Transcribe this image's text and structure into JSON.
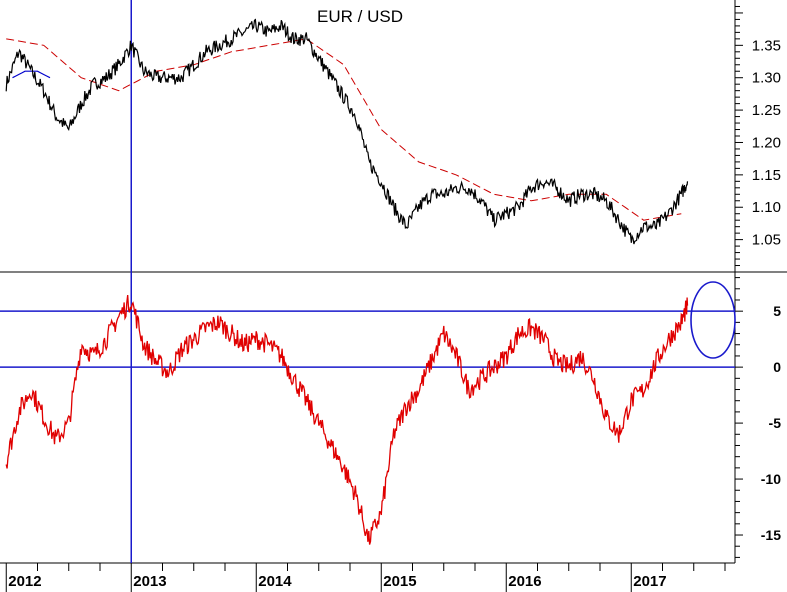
{
  "chart_data": [
    {
      "type": "line",
      "title": "EUR / USD",
      "xlabel": "",
      "ylabel": "",
      "ylim": [
        1.0,
        1.42
      ],
      "yticks": [
        "1.05",
        "1.10",
        "1.15",
        "1.20",
        "1.25",
        "1.30",
        "1.35"
      ],
      "series": [
        {
          "color": "#000000",
          "x": [
            2012.0,
            2012.1,
            2012.2,
            2012.3,
            2012.4,
            2012.5,
            2012.6,
            2012.7,
            2012.8,
            2012.9,
            2013.0,
            2013.1,
            2013.2,
            2013.3,
            2013.4,
            2013.5,
            2013.6,
            2013.7,
            2013.8,
            2013.9,
            2014.0,
            2014.1,
            2014.2,
            2014.3,
            2014.4,
            2014.5,
            2014.6,
            2014.7,
            2014.8,
            2014.9,
            2015.0,
            2015.1,
            2015.2,
            2015.3,
            2015.4,
            2015.5,
            2015.6,
            2015.7,
            2015.8,
            2015.9,
            2016.0,
            2016.1,
            2016.2,
            2016.3,
            2016.4,
            2016.5,
            2016.6,
            2016.7,
            2016.8,
            2016.9,
            2017.0,
            2017.1,
            2017.2,
            2017.3,
            2017.4,
            2017.45
          ],
          "values": [
            1.29,
            1.34,
            1.31,
            1.28,
            1.24,
            1.22,
            1.26,
            1.29,
            1.3,
            1.32,
            1.35,
            1.31,
            1.3,
            1.3,
            1.3,
            1.32,
            1.34,
            1.35,
            1.36,
            1.37,
            1.38,
            1.37,
            1.38,
            1.36,
            1.36,
            1.33,
            1.3,
            1.27,
            1.24,
            1.17,
            1.14,
            1.1,
            1.07,
            1.1,
            1.12,
            1.12,
            1.13,
            1.13,
            1.11,
            1.08,
            1.09,
            1.1,
            1.13,
            1.14,
            1.13,
            1.11,
            1.12,
            1.12,
            1.11,
            1.08,
            1.05,
            1.07,
            1.07,
            1.09,
            1.12,
            1.14
          ]
        },
        {
          "color": "#cc0000",
          "dashed": true,
          "x": [
            2012.0,
            2012.3,
            2012.6,
            2012.9,
            2013.2,
            2013.5,
            2013.8,
            2014.1,
            2014.4,
            2014.7,
            2015.0,
            2015.3,
            2015.6,
            2015.9,
            2016.2,
            2016.5,
            2016.8,
            2017.1,
            2017.4
          ],
          "values": [
            1.36,
            1.35,
            1.3,
            1.28,
            1.31,
            1.32,
            1.34,
            1.35,
            1.36,
            1.32,
            1.22,
            1.17,
            1.15,
            1.12,
            1.11,
            1.12,
            1.12,
            1.08,
            1.09
          ]
        },
        {
          "color": "#0000cc",
          "x": [
            2012.05,
            2012.15,
            2012.25,
            2012.35
          ],
          "values": [
            1.3,
            1.31,
            1.31,
            1.3
          ]
        }
      ]
    },
    {
      "type": "line",
      "title": "",
      "xlabel": "",
      "ylabel": "",
      "ylim": [
        -17.5,
        8.5
      ],
      "yticks": [
        "5",
        "0",
        "-5",
        "-10",
        "-15"
      ],
      "reference_lines": [
        5,
        0
      ],
      "series": [
        {
          "color": "#e00000",
          "x": [
            2012.0,
            2012.1,
            2012.2,
            2012.3,
            2012.4,
            2012.5,
            2012.6,
            2012.7,
            2012.8,
            2012.9,
            2013.0,
            2013.1,
            2013.2,
            2013.3,
            2013.4,
            2013.5,
            2013.6,
            2013.7,
            2013.8,
            2013.9,
            2014.0,
            2014.1,
            2014.2,
            2014.3,
            2014.4,
            2014.5,
            2014.6,
            2014.7,
            2014.8,
            2014.9,
            2015.0,
            2015.1,
            2015.2,
            2015.3,
            2015.4,
            2015.5,
            2015.6,
            2015.7,
            2015.8,
            2015.9,
            2016.0,
            2016.1,
            2016.2,
            2016.3,
            2016.4,
            2016.5,
            2016.6,
            2016.7,
            2016.8,
            2016.9,
            2017.0,
            2017.1,
            2017.2,
            2017.3,
            2017.4,
            2017.45
          ],
          "values": [
            -8.5,
            -4.0,
            -2.0,
            -4.5,
            -6.5,
            -5.0,
            2.0,
            1.0,
            2.5,
            4.5,
            6.0,
            2.0,
            0.5,
            -0.5,
            1.5,
            2.5,
            3.5,
            4.0,
            3.0,
            2.0,
            2.5,
            2.0,
            1.0,
            -1.0,
            -3.0,
            -5.0,
            -7.0,
            -9.0,
            -11.5,
            -15.5,
            -13.0,
            -6.0,
            -3.5,
            -2.0,
            0.5,
            3.0,
            1.0,
            -2.0,
            -1.0,
            0.0,
            1.0,
            3.0,
            3.5,
            2.5,
            0.5,
            0.0,
            1.0,
            -1.0,
            -4.5,
            -6.0,
            -3.0,
            -2.0,
            0.5,
            2.5,
            4.0,
            5.5
          ]
        }
      ]
    }
  ],
  "x_axis": {
    "year_labels": [
      "2012",
      "2013",
      "2014",
      "2015",
      "2016",
      "2017"
    ],
    "year_positions": [
      2012.0,
      2013.0,
      2014.0,
      2015.0,
      2016.0,
      2017.0
    ]
  },
  "highlight_x": 2013.0
}
